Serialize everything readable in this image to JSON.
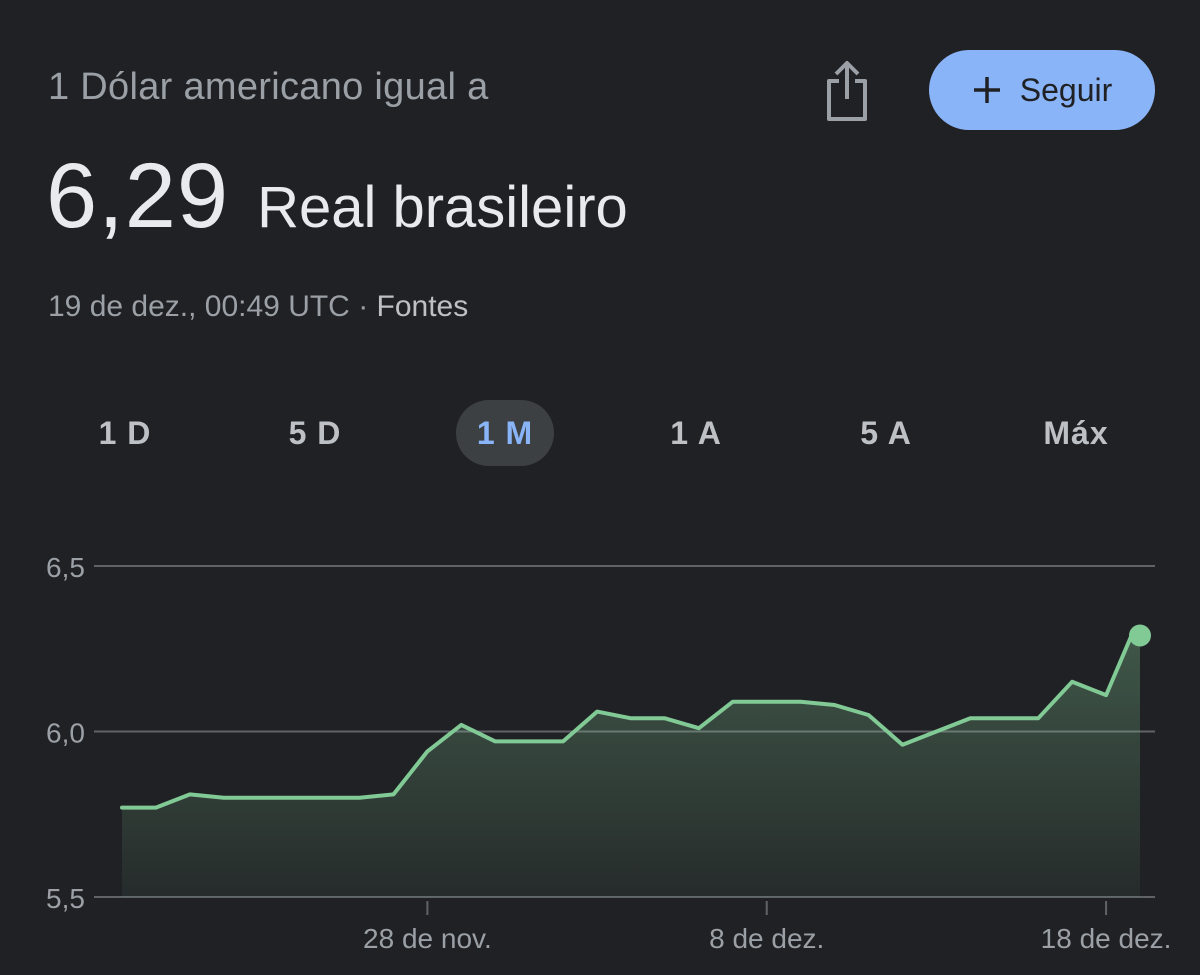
{
  "header": {
    "label": "1 Dólar americano igual a",
    "share_icon": "share-icon",
    "follow_label": "Seguir",
    "follow_icon": "plus-icon"
  },
  "rate": {
    "value": "6,29",
    "unit": "Real brasileiro"
  },
  "timestamp": {
    "text": "19 de dez., 00:49 UTC",
    "separator": " · ",
    "sources_label": "Fontes"
  },
  "tabs": [
    {
      "label": "1 D",
      "active": false
    },
    {
      "label": "5 D",
      "active": false
    },
    {
      "label": "1 M",
      "active": true
    },
    {
      "label": "1 A",
      "active": false
    },
    {
      "label": "5 A",
      "active": false
    },
    {
      "label": "Máx",
      "active": false
    }
  ],
  "colors": {
    "background": "#202124",
    "accent": "#8ab4f8",
    "line": "#81c995",
    "grid": "#5f6368",
    "text_primary": "#e8eaed",
    "text_secondary": "#9aa0a6"
  },
  "chart_data": {
    "type": "area",
    "ylim": [
      5.5,
      6.5
    ],
    "yticks": [
      {
        "value": 6.5,
        "label": "6,5"
      },
      {
        "value": 6.0,
        "label": "6,0"
      },
      {
        "value": 5.5,
        "label": "5,5"
      }
    ],
    "xlim": [
      "2024-11-19",
      "2024-12-19"
    ],
    "xticks": [
      {
        "date": "2024-11-28",
        "label": "28 de nov."
      },
      {
        "date": "2024-12-08",
        "label": "8 de dez."
      },
      {
        "date": "2024-12-18",
        "label": "18 de dez."
      }
    ],
    "series": [
      {
        "points": [
          {
            "x": "2024-11-19",
            "y": 5.77
          },
          {
            "x": "2024-11-20",
            "y": 5.77
          },
          {
            "x": "2024-11-21",
            "y": 5.81
          },
          {
            "x": "2024-11-22",
            "y": 5.8
          },
          {
            "x": "2024-11-23",
            "y": 5.8
          },
          {
            "x": "2024-11-24",
            "y": 5.8
          },
          {
            "x": "2024-11-25",
            "y": 5.8
          },
          {
            "x": "2024-11-26",
            "y": 5.8
          },
          {
            "x": "2024-11-27",
            "y": 5.81
          },
          {
            "x": "2024-11-28",
            "y": 5.94
          },
          {
            "x": "2024-11-29",
            "y": 6.02
          },
          {
            "x": "2024-11-30",
            "y": 5.97
          },
          {
            "x": "2024-12-01",
            "y": 5.97
          },
          {
            "x": "2024-12-02",
            "y": 5.97
          },
          {
            "x": "2024-12-03",
            "y": 6.06
          },
          {
            "x": "2024-12-04",
            "y": 6.04
          },
          {
            "x": "2024-12-05",
            "y": 6.04
          },
          {
            "x": "2024-12-06",
            "y": 6.01
          },
          {
            "x": "2024-12-07",
            "y": 6.09
          },
          {
            "x": "2024-12-08",
            "y": 6.09
          },
          {
            "x": "2024-12-09",
            "y": 6.09
          },
          {
            "x": "2024-12-10",
            "y": 6.08
          },
          {
            "x": "2024-12-11",
            "y": 6.05
          },
          {
            "x": "2024-12-12",
            "y": 5.96
          },
          {
            "x": "2024-12-13",
            "y": 6.0
          },
          {
            "x": "2024-12-14",
            "y": 6.04
          },
          {
            "x": "2024-12-15",
            "y": 6.04
          },
          {
            "x": "2024-12-16",
            "y": 6.04
          },
          {
            "x": "2024-12-17",
            "y": 6.15
          },
          {
            "x": "2024-12-18",
            "y": 6.11
          },
          {
            "x": "2024-12-18T18:00",
            "y": 6.29
          },
          {
            "x": "2024-12-19",
            "y": 6.29
          }
        ]
      }
    ]
  }
}
